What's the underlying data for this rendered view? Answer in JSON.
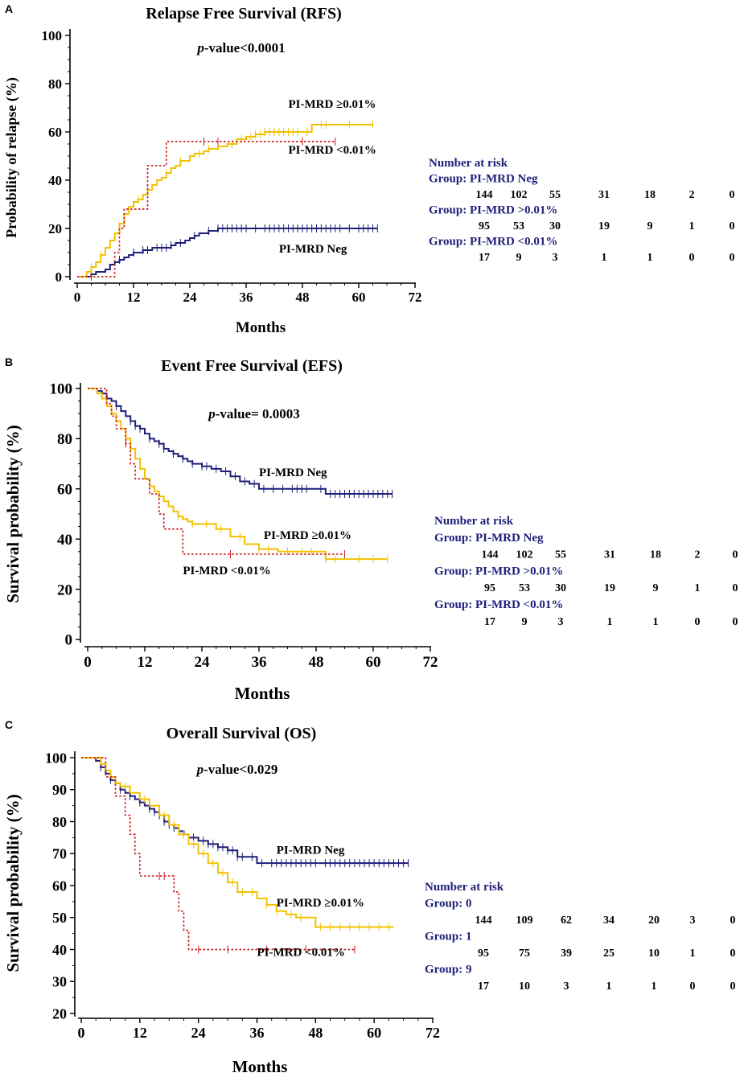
{
  "colors": {
    "neg": "#1f1f7a",
    "ge": "#f2c200",
    "lt": "#cc1f1f",
    "axis": "#000000",
    "risk_header": "#1f1f7a"
  },
  "chart_data": [
    {
      "type": "line",
      "step": true,
      "panel_letter": "A",
      "title": "Relapse Free Survival (RFS)",
      "xlabel": "Months",
      "ylabel": "Probability of relapse (%)",
      "xlim": [
        0,
        72
      ],
      "ylim": [
        0,
        100
      ],
      "xticks": [
        "0",
        "12",
        "24",
        "36",
        "48",
        "60",
        "72"
      ],
      "yticks": [
        "0",
        "20",
        "40",
        "60",
        "80",
        "100"
      ],
      "pvalue": {
        "italic": "p",
        "rest": "-value<0.0001"
      },
      "series": [
        {
          "name": "PI-MRD Neg",
          "color_key": "neg",
          "dashed": false,
          "x": [
            0,
            3,
            4,
            6,
            7,
            8,
            9,
            10,
            11,
            12,
            14,
            16,
            18,
            20,
            21,
            23,
            24,
            25,
            26,
            27,
            28,
            29,
            30,
            32,
            64
          ],
          "y": [
            0,
            1,
            2,
            3,
            5,
            6,
            7,
            8,
            9,
            10,
            11,
            12,
            12,
            13,
            14,
            15,
            16,
            17,
            18,
            18,
            19,
            19,
            20,
            20,
            20
          ],
          "censor_x": [
            9,
            12,
            14,
            15,
            17,
            18,
            19,
            20,
            22,
            25,
            28,
            30,
            31,
            32,
            33,
            34,
            35,
            36,
            38,
            40,
            41,
            42,
            43,
            44,
            45,
            46,
            47,
            48,
            49,
            50,
            51,
            52,
            53,
            54,
            55,
            56,
            58,
            60,
            61,
            62,
            63,
            64
          ]
        },
        {
          "name": "PI-MRD ≥0.01%",
          "color_key": "ge",
          "dashed": false,
          "x": [
            0,
            2,
            3,
            4,
            5,
            6,
            7,
            8,
            9,
            10,
            11,
            12,
            13,
            14,
            15,
            16,
            17,
            18,
            19,
            20,
            21,
            22,
            24,
            25,
            27,
            28,
            30,
            32,
            34,
            36,
            38,
            40,
            44,
            50,
            54,
            63
          ],
          "y": [
            0,
            2,
            4,
            6,
            9,
            12,
            15,
            18,
            22,
            26,
            29,
            31,
            32,
            34,
            36,
            38,
            40,
            41,
            43,
            45,
            46,
            48,
            50,
            51,
            52,
            53,
            54,
            55,
            57,
            58,
            59,
            60,
            60,
            63,
            63,
            63
          ],
          "censor_x": [
            3,
            5,
            13,
            15,
            19,
            22,
            26,
            28,
            30,
            33,
            35,
            37,
            38,
            39,
            40,
            41,
            42,
            43,
            44,
            45,
            46,
            47,
            49,
            52,
            53,
            58,
            63
          ]
        },
        {
          "name": "PI-MRD <0.01%",
          "color_key": "lt",
          "dashed": true,
          "x": [
            0,
            4,
            5,
            6,
            7,
            8,
            9,
            10,
            15,
            17,
            19,
            55
          ],
          "y": [
            0,
            0,
            0,
            0,
            0,
            10,
            20,
            28,
            46,
            46,
            56,
            56
          ],
          "censor_x": [
            3,
            27,
            30,
            48,
            55
          ]
        }
      ],
      "labels": [
        {
          "text": "PI-MRD ≥0.01%",
          "x": 45,
          "y": 70
        },
        {
          "text": "PI-MRD <0.01%",
          "x": 45,
          "y": 51
        },
        {
          "text": "PI-MRD Neg",
          "x": 43,
          "y": 10
        }
      ],
      "risk": {
        "title": "Number at risk",
        "groups": [
          {
            "label": "Group: PI-MRD Neg",
            "values": [
              "144",
              "102",
              "55",
              "31",
              "18",
              "2",
              "0"
            ]
          },
          {
            "label": "Group: PI-MRD >0.01%",
            "values": [
              "95",
              "53",
              "30",
              "19",
              "9",
              "1",
              "0"
            ]
          },
          {
            "label": "Group: PI-MRD <0.01%",
            "values": [
              "17",
              "9",
              "3",
              "1",
              "1",
              "0",
              "0"
            ]
          }
        ]
      }
    },
    {
      "type": "line",
      "step": true,
      "panel_letter": "B",
      "title": "Event Free Survival (EFS)",
      "xlabel": "Months",
      "ylabel": "Survival probability (%)",
      "xlim": [
        0,
        72
      ],
      "ylim": [
        0,
        100
      ],
      "xticks": [
        "0",
        "12",
        "24",
        "36",
        "48",
        "60",
        "72"
      ],
      "yticks": [
        "0",
        "20",
        "40",
        "60",
        "80",
        "100"
      ],
      "pvalue": {
        "italic": "p",
        "rest": "-value= 0.0003"
      },
      "series": [
        {
          "name": "PI-MRD Neg",
          "color_key": "neg",
          "dashed": false,
          "x": [
            0,
            2,
            3,
            4,
            5,
            6,
            7,
            8,
            9,
            10,
            11,
            12,
            13,
            14,
            15,
            16,
            17,
            18,
            19,
            20,
            21,
            22,
            23,
            24,
            26,
            28,
            30,
            32,
            34,
            36,
            40,
            48,
            50,
            64
          ],
          "y": [
            100,
            99,
            98,
            96,
            95,
            93,
            91,
            89,
            87,
            85,
            84,
            82,
            80,
            79,
            78,
            76,
            75,
            74,
            73,
            72,
            71,
            70,
            70,
            69,
            68,
            67,
            65,
            63,
            62,
            60,
            60,
            60,
            58,
            58
          ],
          "censor_x": [
            6,
            9,
            10,
            11,
            13,
            15,
            16,
            18,
            20,
            22,
            24,
            25,
            27,
            29,
            31,
            33,
            35,
            37,
            39,
            41,
            43,
            44,
            45,
            46,
            49,
            51,
            52,
            53,
            54,
            55,
            56,
            57,
            58,
            59,
            60,
            61,
            62,
            63,
            64
          ]
        },
        {
          "name": "PI-MRD ≥0.01%",
          "color_key": "ge",
          "dashed": false,
          "x": [
            0,
            2,
            3,
            4,
            5,
            6,
            7,
            8,
            9,
            10,
            11,
            12,
            13,
            14,
            15,
            16,
            17,
            18,
            19,
            20,
            21,
            22,
            24,
            27,
            30,
            33,
            36,
            40,
            45,
            50,
            63
          ],
          "y": [
            100,
            98,
            96,
            93,
            90,
            87,
            84,
            80,
            76,
            72,
            68,
            64,
            61,
            59,
            57,
            55,
            53,
            51,
            49,
            48,
            47,
            46,
            46,
            44,
            41,
            38,
            36,
            35,
            35,
            32,
            32
          ],
          "censor_x": [
            9,
            13,
            15,
            19,
            22,
            25,
            28,
            32,
            36,
            38,
            42,
            45,
            47,
            50,
            52,
            57,
            60,
            63
          ]
        },
        {
          "name": "PI-MRD <0.01%",
          "color_key": "lt",
          "dashed": true,
          "x": [
            0,
            3,
            4,
            5,
            6,
            8,
            9,
            10,
            13,
            15,
            16,
            19,
            20,
            54
          ],
          "y": [
            100,
            100,
            94,
            89,
            84,
            78,
            70,
            64,
            58,
            50,
            44,
            44,
            34,
            34
          ],
          "censor_x": [
            8,
            30,
            54
          ]
        }
      ],
      "labels": [
        {
          "text": "PI-MRD Neg",
          "x": 36,
          "y": 65
        },
        {
          "text": "PI-MRD ≥0.01%",
          "x": 37,
          "y": 40
        },
        {
          "text": "PI-MRD <0.01%",
          "x": 20,
          "y": 26
        }
      ],
      "risk": {
        "title": "Number at risk",
        "groups": [
          {
            "label": "Group: PI-MRD Neg",
            "values": [
              "144",
              "102",
              "55",
              "31",
              "18",
              "2",
              "0"
            ]
          },
          {
            "label": "Group: PI-MRD >0.01%",
            "values": [
              "95",
              "53",
              "30",
              "19",
              "9",
              "1",
              "0"
            ]
          },
          {
            "label": "Group: PI-MRD <0.01%",
            "values": [
              "17",
              "9",
              "3",
              "1",
              "1",
              "0",
              "0"
            ]
          }
        ]
      }
    },
    {
      "type": "line",
      "step": true,
      "panel_letter": "C",
      "title": "Overall Survival (OS)",
      "xlabel": "Months",
      "ylabel": "Survival probability (%)",
      "xlim": [
        0,
        72
      ],
      "ylim": [
        20,
        100
      ],
      "xticks": [
        "0",
        "12",
        "24",
        "36",
        "48",
        "60",
        "72"
      ],
      "yticks": [
        "20",
        "30",
        "40",
        "50",
        "60",
        "70",
        "80",
        "90",
        "100"
      ],
      "pvalue": {
        "italic": "p",
        "rest": "-value<0.029"
      },
      "series": [
        {
          "name": "PI-MRD Neg",
          "color_key": "neg",
          "dashed": false,
          "x": [
            0,
            3,
            4,
            5,
            6,
            7,
            8,
            9,
            10,
            11,
            12,
            13,
            14,
            15,
            16,
            17,
            18,
            19,
            20,
            21,
            22,
            23,
            24,
            26,
            28,
            30,
            32,
            34,
            36,
            48,
            67
          ],
          "y": [
            100,
            99,
            97,
            95,
            93,
            92,
            90,
            89,
            88,
            87,
            86,
            85,
            84,
            83,
            82,
            80,
            79,
            78,
            77,
            76,
            75,
            75,
            74,
            73,
            72,
            71,
            69,
            69,
            67,
            67,
            67
          ],
          "censor_x": [
            4,
            6,
            8,
            10,
            12,
            14,
            15,
            16,
            17,
            18,
            19,
            20,
            21,
            22,
            23,
            25,
            26,
            27,
            28,
            29,
            30,
            31,
            32,
            33,
            35,
            37,
            39,
            40,
            41,
            42,
            43,
            44,
            45,
            46,
            47,
            48,
            50,
            51,
            52,
            53,
            54,
            55,
            56,
            57,
            58,
            59,
            60,
            61,
            62,
            63,
            64,
            65,
            66,
            67
          ]
        },
        {
          "name": "PI-MRD ≥0.01%",
          "color_key": "ge",
          "dashed": false,
          "x": [
            0,
            4,
            5,
            6,
            7,
            8,
            10,
            12,
            14,
            16,
            18,
            20,
            22,
            24,
            26,
            28,
            30,
            32,
            36,
            38,
            40,
            42,
            44,
            46,
            48,
            50,
            64
          ],
          "y": [
            100,
            98,
            96,
            94,
            92,
            91,
            89,
            87,
            85,
            82,
            79,
            76,
            73,
            70,
            67,
            64,
            61,
            58,
            56,
            54,
            52,
            51,
            50,
            50,
            47,
            47,
            47
          ],
          "censor_x": [
            9,
            13,
            17,
            19,
            21,
            23,
            25,
            27,
            29,
            31,
            33,
            35,
            38,
            40,
            43,
            45,
            49,
            51,
            53,
            55,
            57,
            59,
            61,
            63
          ]
        },
        {
          "name": "PI-MRD <0.01%",
          "color_key": "lt",
          "dashed": true,
          "x": [
            0,
            4,
            5,
            6,
            7,
            8,
            9,
            10,
            11,
            12,
            18,
            19,
            20,
            21,
            22,
            56
          ],
          "y": [
            100,
            100,
            94,
            94,
            88,
            88,
            82,
            76,
            70,
            63,
            63,
            58,
            52,
            46,
            40,
            40
          ],
          "censor_x": [
            16,
            17,
            24,
            30,
            38,
            46,
            56
          ]
        }
      ],
      "labels": [
        {
          "text": "PI-MRD Neg",
          "x": 40,
          "y": 70
        },
        {
          "text": "PI-MRD ≥0.01%",
          "x": 40,
          "y": 53.5
        },
        {
          "text": "PI-MRD <0.01%",
          "x": 36,
          "y": 38
        }
      ],
      "risk": {
        "title": "Number at risk",
        "groups": [
          {
            "label": "Group: 0",
            "values": [
              "144",
              "109",
              "62",
              "34",
              "20",
              "3",
              "0"
            ]
          },
          {
            "label": "Group: 1",
            "values": [
              "95",
              "75",
              "39",
              "25",
              "10",
              "1",
              "0"
            ]
          },
          {
            "label": "Group: 9",
            "values": [
              "17",
              "10",
              "3",
              "1",
              "1",
              "0",
              "0"
            ]
          }
        ]
      }
    }
  ]
}
